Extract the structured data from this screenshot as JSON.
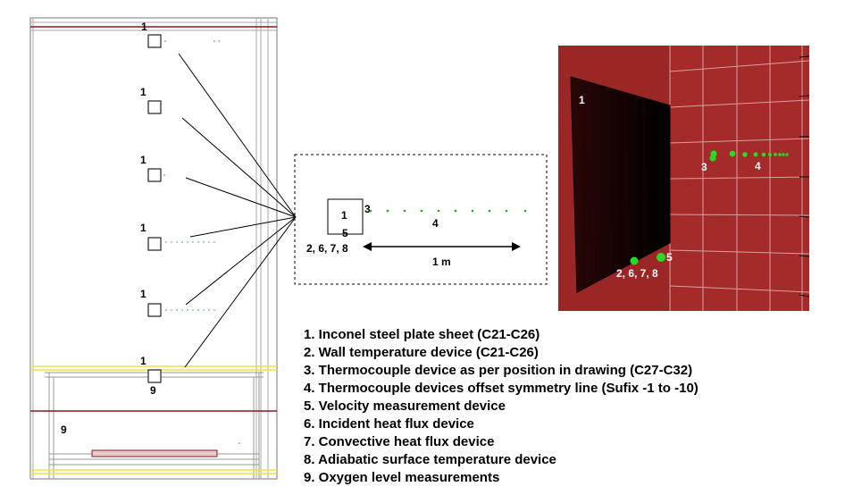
{
  "drawing": {
    "plate_label": "1",
    "oxygen_label": "9",
    "device_label_3": "3",
    "device_label_4": "4",
    "device_label_5": "5",
    "device_label_group": "2, 6, 7, 8",
    "distance_label": "1 m"
  },
  "render_view": {
    "plate_label": "1",
    "label_3": "3",
    "label_4": "4",
    "label_5": "5",
    "label_group": "2, 6, 7, 8"
  },
  "colors": {
    "wall_red": "#a52a2a",
    "sensor_green": "#22dd22",
    "frame_dark_red": "#8b1a1a",
    "frame_yellow": "#f0e040"
  },
  "legend": [
    "1. Inconel steel plate sheet (C21-C26)",
    "2. Wall temperature device (C21-C26)",
    "3. Thermocouple device as per position in drawing (C27-C32)",
    "4. Thermocouple devices offset symmetry line (Sufix -1 to -10)",
    "5. Velocity measurement device",
    "6. Incident heat flux device",
    "7. Convective heat flux device",
    "8. Adiabatic surface temperature device",
    "9. Oxygen level measurements"
  ]
}
